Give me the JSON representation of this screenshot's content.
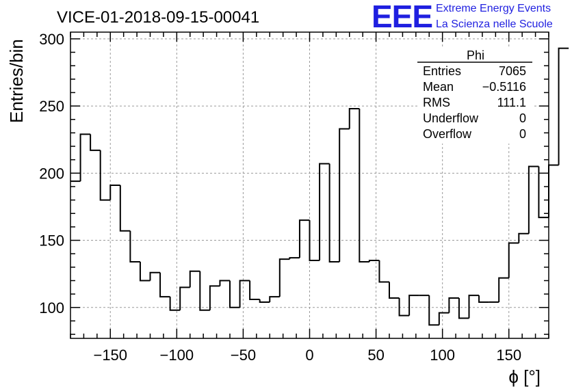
{
  "title": "VICE-01-2018-09-15-00041",
  "logo": {
    "letters": "EEE",
    "line1": "Extreme Energy Events",
    "line2": "La Scienza nelle Scuole",
    "color": "#1f1fe0"
  },
  "stats": {
    "name": "Phi",
    "rows": [
      {
        "label": "Entries",
        "value": "7065"
      },
      {
        "label": "Mean",
        "value": "−0.5116"
      },
      {
        "label": "RMS",
        "value": "111.1"
      },
      {
        "label": "Underflow",
        "value": "0"
      },
      {
        "label": "Overflow",
        "value": "0"
      }
    ]
  },
  "chart_data": {
    "type": "bar",
    "style": "step-histogram",
    "xlabel": "ϕ [°]",
    "ylabel": "Entries/bin",
    "xlim": [
      -180,
      180
    ],
    "ylim": [
      77,
      305
    ],
    "x_ticks": [
      -150,
      -100,
      -50,
      0,
      50,
      100,
      150
    ],
    "y_ticks": [
      100,
      150,
      200,
      250,
      300
    ],
    "x_tick_labels": [
      "−150",
      "−100",
      "−50",
      "0",
      "50",
      "100",
      "150"
    ],
    "y_tick_labels": [
      "100",
      "150",
      "200",
      "250",
      "300"
    ],
    "grid": true,
    "bin_width": 7.5,
    "bin_edges_start": -180,
    "values": [
      194,
      229,
      217,
      180,
      191,
      157,
      134,
      120,
      126,
      108,
      98,
      115,
      127,
      98,
      116,
      120,
      100,
      120,
      106,
      104,
      108,
      136,
      137,
      165,
      135,
      207,
      134,
      233,
      248,
      134,
      135,
      119,
      107,
      94,
      109,
      109,
      87,
      96,
      107,
      92,
      109,
      104,
      104,
      122,
      148,
      155,
      205,
      167,
      206,
      293
    ],
    "line_color": "#000000"
  }
}
